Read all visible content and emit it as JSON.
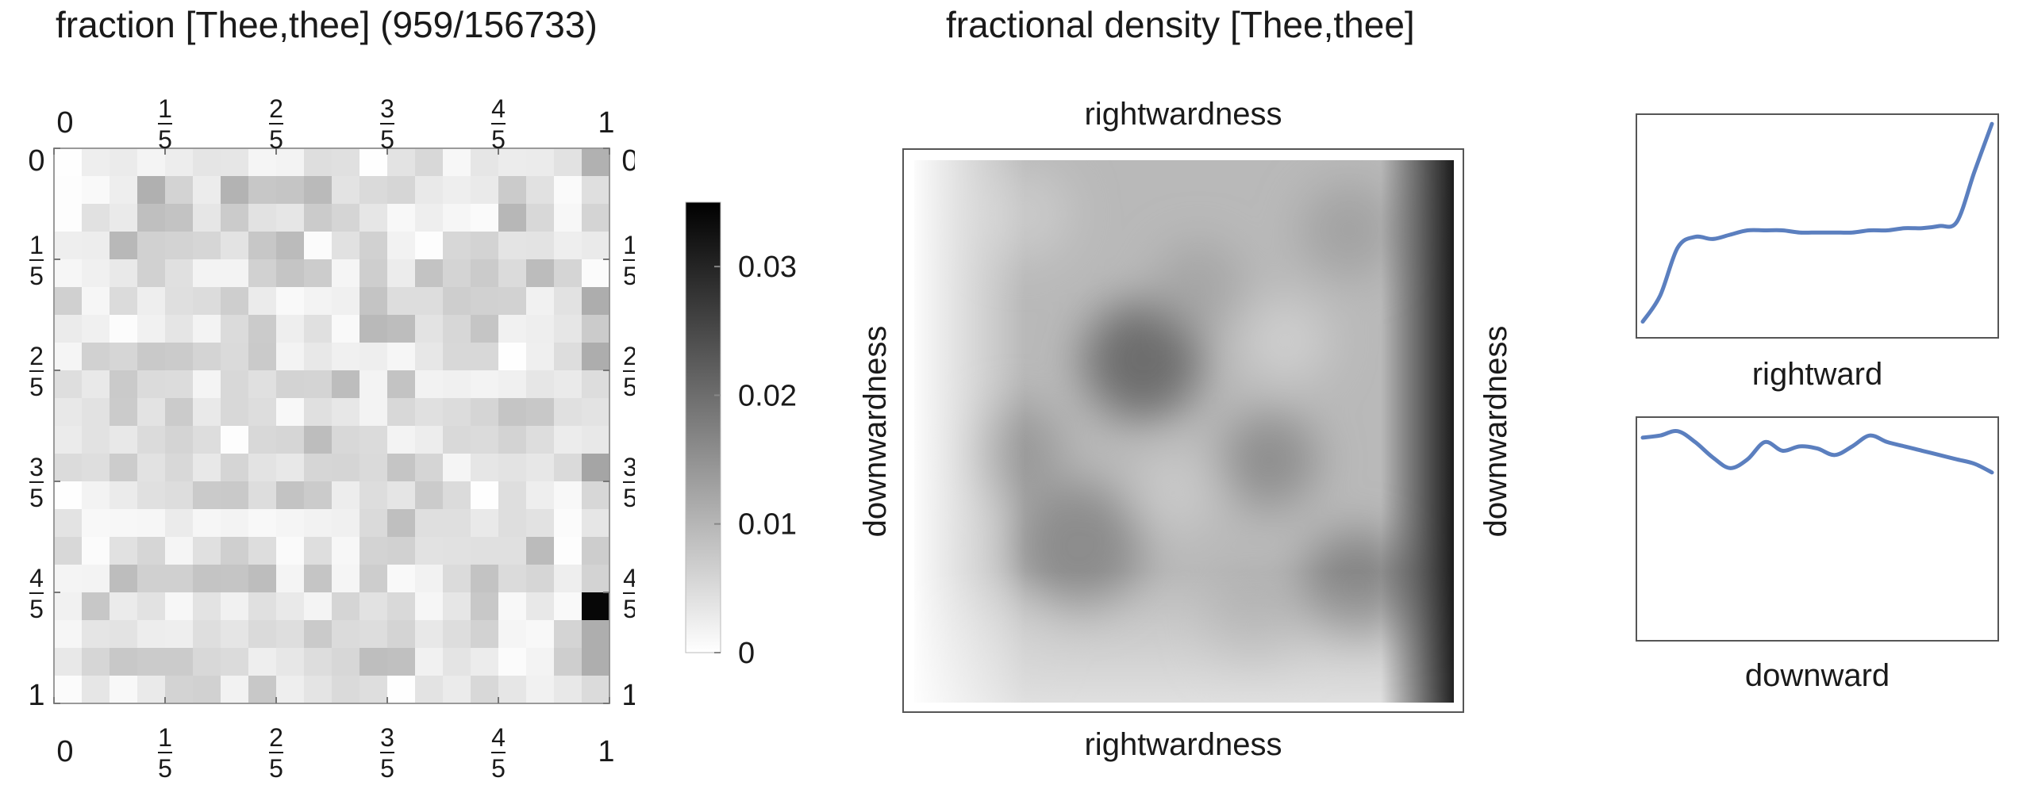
{
  "chart_data": [
    {
      "type": "heatmap",
      "title": "fraction [Thee,thee]  (959/156733)",
      "grid_size": [
        20,
        20
      ],
      "x_ticks": [
        "0",
        "1/5",
        "2/5",
        "3/5",
        "4/5",
        "1"
      ],
      "y_ticks": [
        "0",
        "1/5",
        "2/5",
        "3/5",
        "4/5",
        "1"
      ],
      "colorbar": {
        "min": 0,
        "max": 0.035,
        "ticks": [
          "0",
          "0.01",
          "0.02",
          "0.03"
        ],
        "colormap": "white-to-black"
      },
      "values": [
        [
          0.0002,
          0.0024,
          0.0027,
          0.0015,
          0.0025,
          0.0036,
          0.0035,
          0.0014,
          0.0016,
          0.0045,
          0.0042,
          0.0001,
          0.0038,
          0.0054,
          0.0011,
          0.0035,
          0.0026,
          0.0028,
          0.004,
          0.0107
        ],
        [
          0.0003,
          0.0008,
          0.0024,
          0.0108,
          0.0061,
          0.0026,
          0.0104,
          0.0077,
          0.0079,
          0.0095,
          0.0039,
          0.0051,
          0.0056,
          0.003,
          0.0024,
          0.0029,
          0.0071,
          0.0041,
          0.0007,
          0.0044
        ],
        [
          0.0003,
          0.0041,
          0.0029,
          0.0088,
          0.0082,
          0.0034,
          0.0071,
          0.004,
          0.0035,
          0.0071,
          0.0057,
          0.0035,
          0.0009,
          0.0024,
          0.0012,
          0.0007,
          0.0099,
          0.0053,
          0.0011,
          0.0059
        ],
        [
          0.0024,
          0.0025,
          0.0098,
          0.0063,
          0.0061,
          0.0056,
          0.0038,
          0.0077,
          0.0093,
          0.0006,
          0.0041,
          0.0063,
          0.0018,
          0.0003,
          0.0055,
          0.006,
          0.0037,
          0.0038,
          0.0024,
          0.0029
        ],
        [
          0.0013,
          0.002,
          0.003,
          0.0063,
          0.0043,
          0.0016,
          0.0016,
          0.0063,
          0.0079,
          0.007,
          0.0014,
          0.0067,
          0.0026,
          0.0082,
          0.0059,
          0.0071,
          0.0049,
          0.0092,
          0.0058,
          0.0005
        ],
        [
          0.0064,
          0.0012,
          0.005,
          0.0024,
          0.0044,
          0.0048,
          0.0067,
          0.0028,
          0.0008,
          0.0017,
          0.002,
          0.0081,
          0.0047,
          0.0046,
          0.0067,
          0.0063,
          0.0062,
          0.0019,
          0.004,
          0.0112
        ],
        [
          0.0027,
          0.0021,
          0.0004,
          0.0019,
          0.0036,
          0.0016,
          0.005,
          0.0071,
          0.0023,
          0.0043,
          0.0008,
          0.0096,
          0.0091,
          0.0039,
          0.0055,
          0.0079,
          0.0019,
          0.0024,
          0.0035,
          0.0071
        ],
        [
          0.0014,
          0.0063,
          0.0056,
          0.0074,
          0.0071,
          0.0059,
          0.0051,
          0.0073,
          0.0016,
          0.0031,
          0.002,
          0.0023,
          0.0012,
          0.0033,
          0.0053,
          0.0054,
          0.0002,
          0.0022,
          0.0047,
          0.0113
        ],
        [
          0.0045,
          0.003,
          0.0073,
          0.0049,
          0.0048,
          0.0015,
          0.0053,
          0.0043,
          0.0061,
          0.0059,
          0.009,
          0.0017,
          0.0082,
          0.0018,
          0.0021,
          0.0017,
          0.002,
          0.0035,
          0.0029,
          0.0047
        ],
        [
          0.0032,
          0.004,
          0.0072,
          0.0038,
          0.0071,
          0.003,
          0.0053,
          0.0046,
          0.0009,
          0.0042,
          0.0033,
          0.0017,
          0.0054,
          0.0043,
          0.0048,
          0.0057,
          0.0079,
          0.0076,
          0.0042,
          0.0038
        ],
        [
          0.0027,
          0.004,
          0.0032,
          0.0049,
          0.0059,
          0.0047,
          0.0003,
          0.0054,
          0.0056,
          0.0091,
          0.0053,
          0.005,
          0.0016,
          0.0025,
          0.0052,
          0.0049,
          0.006,
          0.0047,
          0.0026,
          0.0032
        ],
        [
          0.0049,
          0.0045,
          0.007,
          0.004,
          0.0054,
          0.0032,
          0.0058,
          0.0038,
          0.0031,
          0.0056,
          0.0058,
          0.0051,
          0.0079,
          0.0057,
          0.0014,
          0.0035,
          0.0039,
          0.0033,
          0.0051,
          0.0123
        ],
        [
          0.0001,
          0.0017,
          0.0027,
          0.0042,
          0.0047,
          0.0073,
          0.0074,
          0.0047,
          0.0082,
          0.0072,
          0.0025,
          0.0047,
          0.0036,
          0.0071,
          0.005,
          0.0002,
          0.0045,
          0.0024,
          0.0009,
          0.0055
        ],
        [
          0.0038,
          0.0009,
          0.0011,
          0.0013,
          0.0028,
          0.0012,
          0.0017,
          0.0009,
          0.0014,
          0.0018,
          0.002,
          0.0051,
          0.0088,
          0.0044,
          0.0044,
          0.003,
          0.0045,
          0.004,
          0.0006,
          0.0034
        ],
        [
          0.0054,
          0.0005,
          0.0041,
          0.0056,
          0.0014,
          0.0042,
          0.0066,
          0.0047,
          0.0007,
          0.0045,
          0.0011,
          0.0061,
          0.0063,
          0.004,
          0.0041,
          0.0042,
          0.0043,
          0.0094,
          0.0003,
          0.0068
        ],
        [
          0.0015,
          0.0017,
          0.009,
          0.0064,
          0.0065,
          0.0081,
          0.008,
          0.009,
          0.0015,
          0.008,
          0.0014,
          0.0069,
          0.0008,
          0.0018,
          0.005,
          0.0083,
          0.005,
          0.0056,
          0.0023,
          0.006
        ],
        [
          0.0019,
          0.0077,
          0.0027,
          0.004,
          0.0011,
          0.0038,
          0.0019,
          0.0043,
          0.003,
          0.0015,
          0.0058,
          0.004,
          0.0052,
          0.0012,
          0.0034,
          0.0076,
          0.0009,
          0.0032,
          0.0008,
          0.0341
        ],
        [
          0.0012,
          0.0036,
          0.0039,
          0.0025,
          0.0024,
          0.0045,
          0.0036,
          0.0051,
          0.0045,
          0.0073,
          0.005,
          0.0047,
          0.0059,
          0.0032,
          0.0046,
          0.0062,
          0.0014,
          0.0009,
          0.0059,
          0.0111
        ],
        [
          0.0032,
          0.0056,
          0.0076,
          0.0071,
          0.0071,
          0.0053,
          0.005,
          0.0024,
          0.0033,
          0.0046,
          0.0055,
          0.0089,
          0.0087,
          0.0019,
          0.0037,
          0.0026,
          0.0006,
          0.0016,
          0.0067,
          0.0111
        ],
        [
          0.0006,
          0.0034,
          0.001,
          0.0029,
          0.006,
          0.0063,
          0.0018,
          0.0075,
          0.0024,
          0.0037,
          0.0051,
          0.0045,
          0.0001,
          0.0039,
          0.0028,
          0.0054,
          0.0034,
          0.0019,
          0.0032,
          0.005
        ]
      ]
    },
    {
      "type": "heatmap",
      "title": "fractional density [Thee,thee]",
      "xlabel": "rightwardness",
      "ylabel": "downwardness"
    },
    {
      "type": "line",
      "xlabel": "rightward",
      "x": [
        0,
        0.05,
        0.1,
        0.15,
        0.2,
        0.25,
        0.3,
        0.35,
        0.4,
        0.45,
        0.5,
        0.55,
        0.6,
        0.65,
        0.7,
        0.75,
        0.8,
        0.85,
        0.9,
        0.95,
        1
      ],
      "y": [
        0.06,
        0.18,
        0.4,
        0.45,
        0.44,
        0.46,
        0.48,
        0.48,
        0.48,
        0.47,
        0.47,
        0.47,
        0.47,
        0.48,
        0.48,
        0.49,
        0.49,
        0.5,
        0.52,
        0.75,
        0.97
      ],
      "series_color": "#5b7fbf"
    },
    {
      "type": "line",
      "xlabel": "downward",
      "x": [
        0,
        0.05,
        0.1,
        0.15,
        0.2,
        0.25,
        0.3,
        0.35,
        0.4,
        0.45,
        0.5,
        0.55,
        0.6,
        0.65,
        0.7,
        0.75,
        0.8,
        0.85,
        0.9,
        0.95,
        1
      ],
      "y": [
        0.92,
        0.93,
        0.95,
        0.9,
        0.83,
        0.78,
        0.82,
        0.9,
        0.86,
        0.88,
        0.87,
        0.84,
        0.88,
        0.93,
        0.9,
        0.88,
        0.86,
        0.84,
        0.82,
        0.8,
        0.76
      ],
      "series_color": "#5b7fbf"
    }
  ]
}
